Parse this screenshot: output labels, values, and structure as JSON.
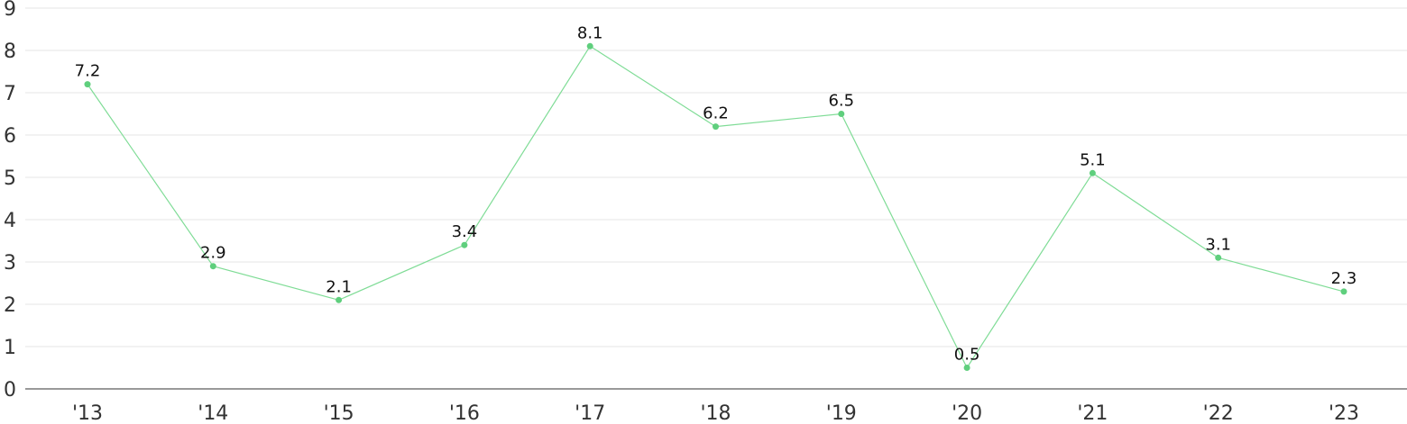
{
  "chart_data": {
    "type": "line",
    "categories": [
      "'13",
      "'14",
      "'15",
      "'16",
      "'17",
      "'18",
      "'19",
      "'20",
      "'21",
      "'22",
      "'23"
    ],
    "series": [
      {
        "values": [
          7.2,
          2.9,
          2.1,
          3.4,
          8.1,
          6.2,
          6.5,
          0.5,
          5.1,
          3.1,
          2.3
        ]
      }
    ],
    "y_ticks": [
      "0",
      "1",
      "2",
      "3",
      "4",
      "5",
      "6",
      "7",
      "8",
      "9"
    ],
    "ylim": [
      0,
      9
    ],
    "grid": true,
    "data_labels": [
      "7.2",
      "2.9",
      "2.1",
      "3.4",
      "8.1",
      "6.2",
      "6.5",
      "0.5",
      "5.1",
      "3.1",
      "2.3"
    ],
    "colors": {
      "line": "#7fdc96",
      "marker": "#5fcf7d"
    }
  }
}
